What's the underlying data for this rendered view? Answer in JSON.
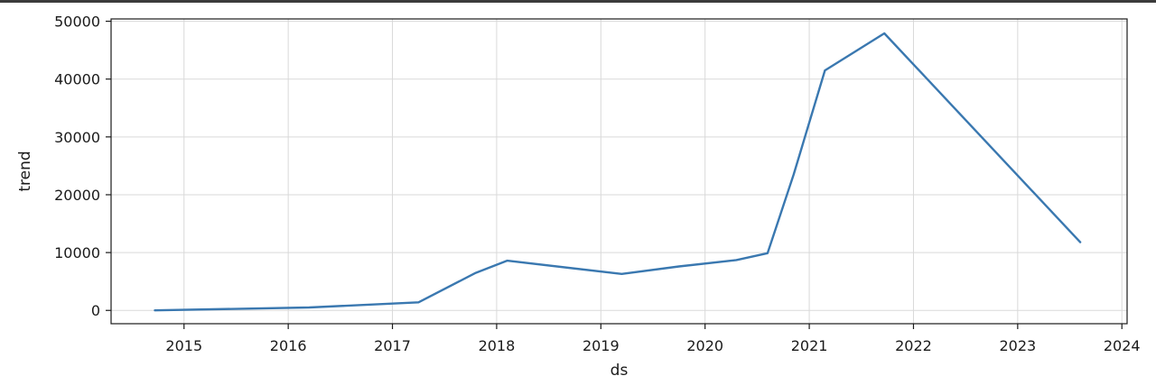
{
  "chart_data": {
    "type": "line",
    "title": "",
    "xlabel": "ds",
    "ylabel": "trend",
    "grid": true,
    "xlim": [
      2014.3,
      2024.05
    ],
    "ylim": [
      -2300,
      50400
    ],
    "x_ticks": [
      2015,
      2016,
      2017,
      2018,
      2019,
      2020,
      2021,
      2022,
      2023,
      2024
    ],
    "x_tick_labels": [
      "2015",
      "2016",
      "2017",
      "2018",
      "2019",
      "2020",
      "2021",
      "2022",
      "2023",
      "2024"
    ],
    "y_ticks": [
      0,
      10000,
      20000,
      30000,
      40000,
      50000
    ],
    "y_tick_labels": [
      "0",
      "10000",
      "20000",
      "30000",
      "40000",
      "50000"
    ],
    "series": [
      {
        "color": "#3a78b0",
        "x": [
          2014.72,
          2016.2,
          2017.25,
          2017.8,
          2018.1,
          2019.2,
          2019.75,
          2020.3,
          2020.6,
          2020.85,
          2021.15,
          2021.72,
          2023.6
        ],
        "y": [
          0,
          500,
          1400,
          6500,
          8600,
          6300,
          7600,
          8700,
          9900,
          23500,
          41500,
          47900,
          11800
        ]
      }
    ]
  }
}
